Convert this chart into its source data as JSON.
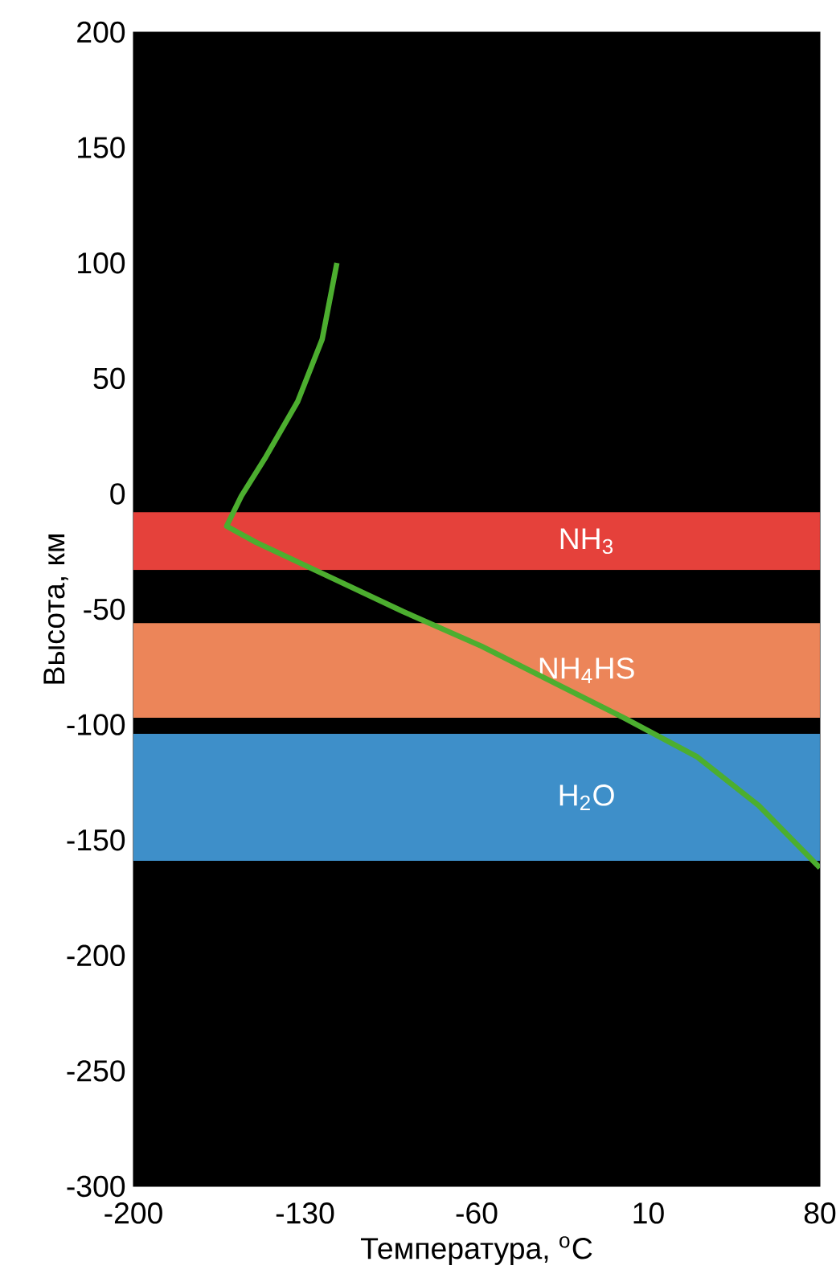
{
  "chart_data": {
    "type": "line",
    "xlabel": "Температура, $^{o}$C",
    "ylabel": "Высота, км",
    "xlim": [
      -200,
      80
    ],
    "ylim": [
      -300,
      200
    ],
    "xticks": [
      -200,
      -130,
      -60,
      10,
      80
    ],
    "yticks": [
      -300,
      -250,
      -200,
      -150,
      -100,
      -50,
      0,
      50,
      100,
      150,
      200
    ],
    "grid": false,
    "series": [
      {
        "color": "#4cae2f",
        "x": [
          -117,
          -123,
          -133,
          -146,
          -156,
          -162,
          -150,
          -120,
          -90,
          -58,
          -30,
          0,
          30,
          55,
          80
        ],
        "values": [
          100,
          67,
          40,
          16,
          -1,
          -14,
          -21,
          -36,
          -51,
          -66,
          -81,
          -97,
          -114,
          -135,
          -162
        ]
      }
    ],
    "bands": [
      {
        "axis": "y",
        "from": -8,
        "to": -33,
        "label": "NH$_{3}$",
        "color": "#e5413b"
      },
      {
        "axis": "y",
        "from": -56,
        "to": -97,
        "label": "NH$_{4}$HS",
        "color": "#ec8559"
      },
      {
        "axis": "y",
        "from": -104,
        "to": -159,
        "label": "H$_{2}$O",
        "color": "#3e8fc9"
      }
    ]
  }
}
